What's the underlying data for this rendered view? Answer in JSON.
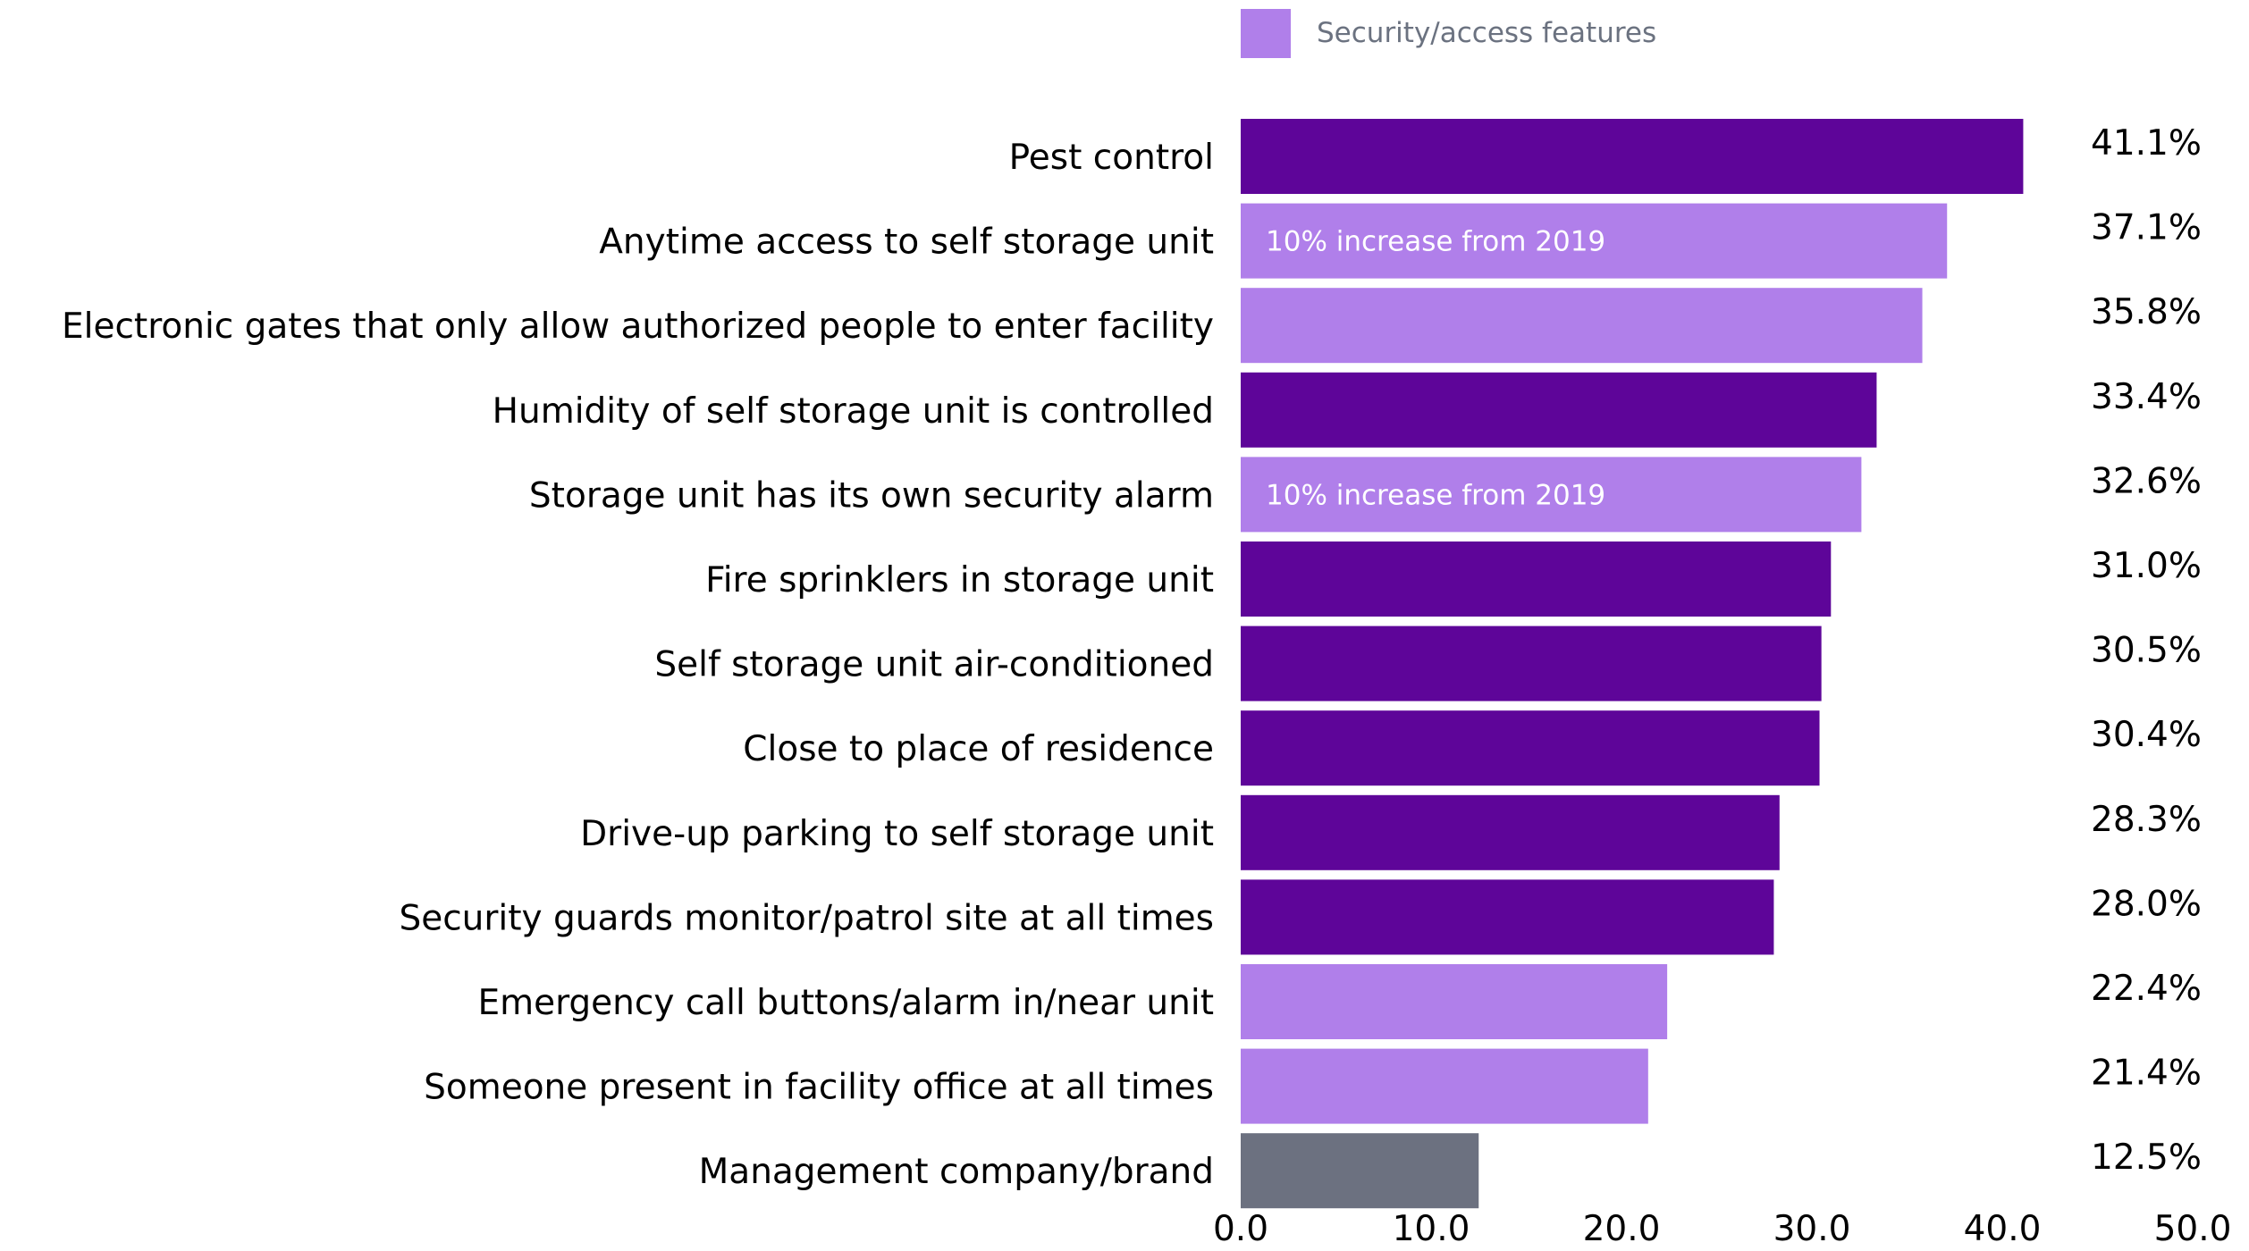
{
  "chart_data": {
    "type": "bar",
    "orientation": "horizontal",
    "categories": [
      "Pest control",
      "Anytime access to self storage unit",
      "Electronic gates that only allow authorized people to enter facility",
      "Humidity of self storage unit is controlled",
      "Storage unit has its own security alarm",
      "Fire sprinklers in storage unit",
      "Self storage unit air-conditioned",
      "Close to place of residence",
      "Drive-up parking to self storage unit",
      "Security guards monitor/patrol site at all times",
      "Emergency call buttons/alarm in/near unit",
      "Someone present in facility office at all times",
      "Management company/brand"
    ],
    "values": [
      41.1,
      37.1,
      35.8,
      33.4,
      32.6,
      31.0,
      30.5,
      30.4,
      28.3,
      28.0,
      22.4,
      21.4,
      12.5
    ],
    "value_labels": [
      "41.1%",
      "37.1%",
      "35.8%",
      "33.4%",
      "32.6%",
      "31.0%",
      "30.5%",
      "30.4%",
      "28.3%",
      "28.0%",
      "22.4%",
      "21.4%",
      "12.5%"
    ],
    "groups": [
      "other",
      "security",
      "security",
      "other",
      "security",
      "other",
      "other",
      "other",
      "other",
      "other",
      "security",
      "security",
      "brand"
    ],
    "group_colors": {
      "other": "#5e0599",
      "security": "#b07fea",
      "brand": "#6c7180"
    },
    "annotations": [
      {
        "category_index": 1,
        "text": "10% increase from 2019"
      },
      {
        "category_index": 4,
        "text": "10% increase from 2019"
      }
    ],
    "legend": [
      {
        "label": "Security/access features",
        "color": "#b07fea"
      }
    ],
    "legend_position": "top",
    "xlim": [
      0,
      50
    ],
    "xticks": [
      0,
      10,
      20,
      30,
      40,
      50
    ],
    "xtick_labels": [
      "0.0",
      "10.0",
      "20.0",
      "30.0",
      "40.0",
      "50.0"
    ],
    "title": "",
    "xlabel": "",
    "ylabel": "",
    "grid": false
  }
}
